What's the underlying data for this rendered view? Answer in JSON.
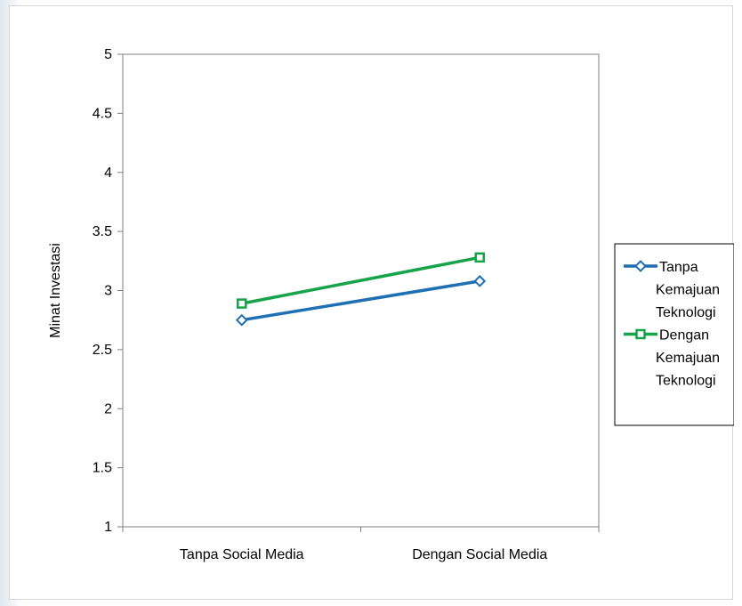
{
  "chart_data": {
    "type": "line",
    "title": "",
    "xlabel": "",
    "ylabel": "Minat Investasi",
    "categories": [
      "Tanpa Social Media",
      "Dengan Social Media"
    ],
    "ylim": [
      1,
      5
    ],
    "yticks": [
      "1",
      "1.5",
      "2",
      "2.5",
      "3",
      "3.5",
      "4",
      "4.5",
      "5"
    ],
    "grid": false,
    "legend_position": "right",
    "series": [
      {
        "name": "Tanpa Kemajuan Teknologi",
        "legend_lines": [
          "Tanpa",
          "Kemajuan",
          "Teknologi"
        ],
        "values": [
          2.75,
          3.08
        ],
        "color": "#1f6fb4",
        "marker": "diamond"
      },
      {
        "name": "Dengan Kemajuan Teknologi",
        "legend_lines": [
          "Dengan",
          "Kemajuan",
          "Teknologi"
        ],
        "values": [
          2.89,
          3.28
        ],
        "color": "#17a34a",
        "marker": "square"
      }
    ]
  }
}
